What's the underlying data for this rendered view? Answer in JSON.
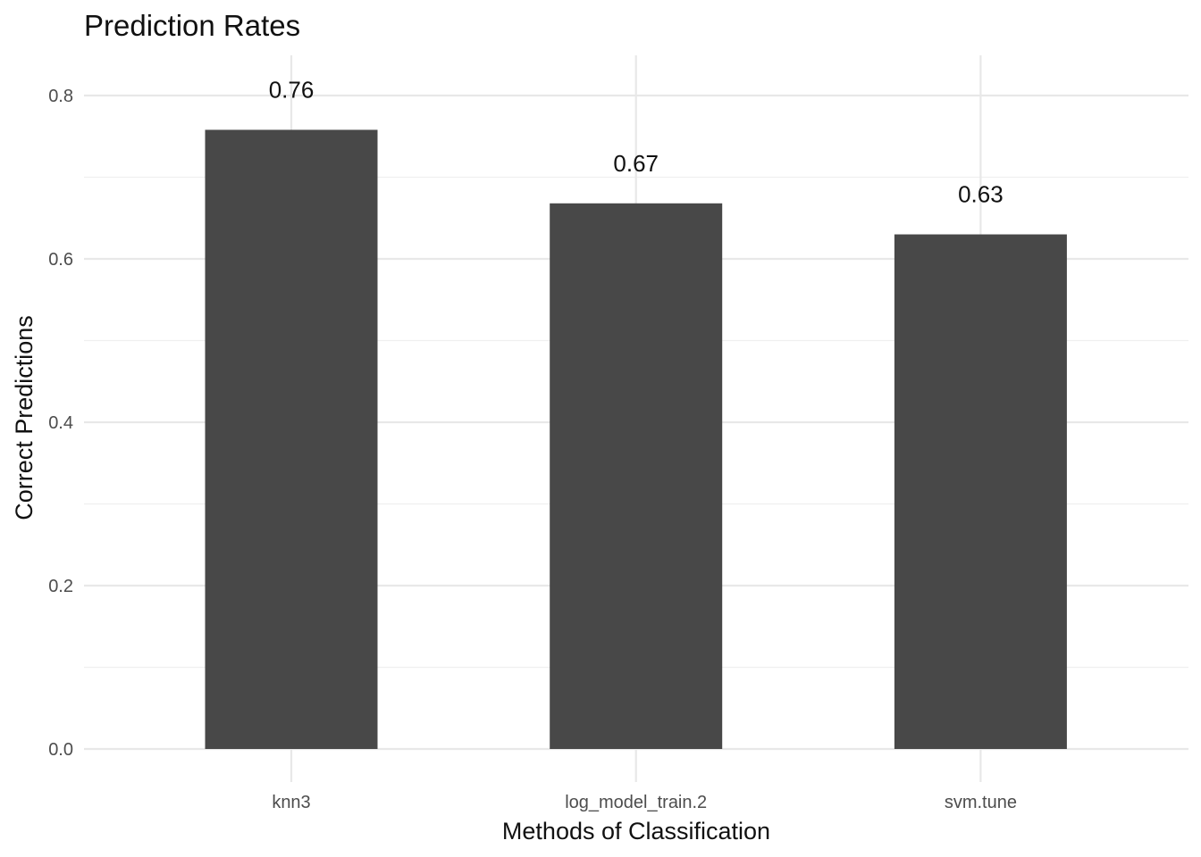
{
  "chart_data": {
    "type": "bar",
    "title": "Prediction Rates",
    "xlabel": "Methods of Classification",
    "ylabel": "Correct Predictions",
    "categories": [
      "knn3",
      "log_model_train.2",
      "svm.tune"
    ],
    "values": [
      0.758,
      0.668,
      0.63
    ],
    "data_labels": [
      "0.76",
      "0.67",
      "0.63"
    ],
    "ylim": [
      0,
      0.84
    ],
    "yticks": [
      0.0,
      0.2,
      0.4,
      0.6,
      0.8
    ],
    "ytick_labels": [
      "0.0",
      "0.2",
      "0.4",
      "0.6",
      "0.8"
    ],
    "bar_color": "#484848",
    "grid": true,
    "legend": "none"
  }
}
